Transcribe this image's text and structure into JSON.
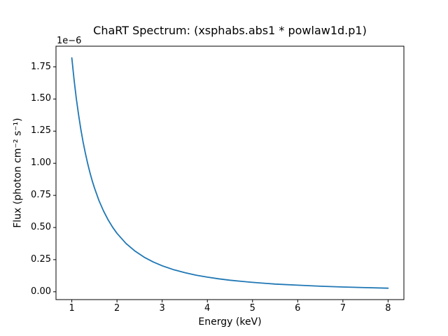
{
  "window": {
    "background": "#ffffff",
    "text_color": "#000000"
  },
  "chart_data": {
    "type": "line",
    "title": "ChaRT Spectrum: (xsphabs.abs1 * powlaw1d.p1)",
    "xlabel": "Energy (keV)",
    "ylabel": "Flux (photon cm⁻² s⁻¹)",
    "y_offset_label": "1e−6",
    "y_unit_scale": "1e-6",
    "line_color": "#1f77b4",
    "axis_color": "#000000",
    "grid": false,
    "legend": null,
    "xlim": [
      0.65,
      8.35
    ],
    "ylim": [
      -0.061,
      1.911
    ],
    "xticks": [
      1,
      2,
      3,
      4,
      5,
      6,
      7,
      8
    ],
    "xtick_labels": [
      "1",
      "2",
      "3",
      "4",
      "5",
      "6",
      "7",
      "8"
    ],
    "yticks": [
      0.0,
      0.25,
      0.5,
      0.75,
      1.0,
      1.25,
      1.5,
      1.75
    ],
    "ytick_labels": [
      "0.00",
      "0.25",
      "0.50",
      "0.75",
      "1.00",
      "1.25",
      "1.50",
      "1.75"
    ],
    "x": [
      1.0,
      1.05,
      1.1,
      1.15,
      1.2,
      1.25,
      1.3,
      1.35,
      1.4,
      1.45,
      1.5,
      1.6,
      1.7,
      1.8,
      1.9,
      2.0,
      2.2,
      2.4,
      2.6,
      2.8,
      3.0,
      3.25,
      3.5,
      3.75,
      4.0,
      4.25,
      4.5,
      4.75,
      5.0,
      5.5,
      6.0,
      6.5,
      7.0,
      7.5,
      8.0
    ],
    "y": [
      1.82,
      1.651,
      1.504,
      1.376,
      1.264,
      1.165,
      1.077,
      0.999,
      0.929,
      0.866,
      0.809,
      0.711,
      0.63,
      0.562,
      0.504,
      0.455,
      0.376,
      0.316,
      0.269,
      0.232,
      0.202,
      0.172,
      0.149,
      0.129,
      0.114,
      0.101,
      0.09,
      0.081,
      0.073,
      0.06,
      0.051,
      0.043,
      0.037,
      0.032,
      0.028
    ]
  }
}
